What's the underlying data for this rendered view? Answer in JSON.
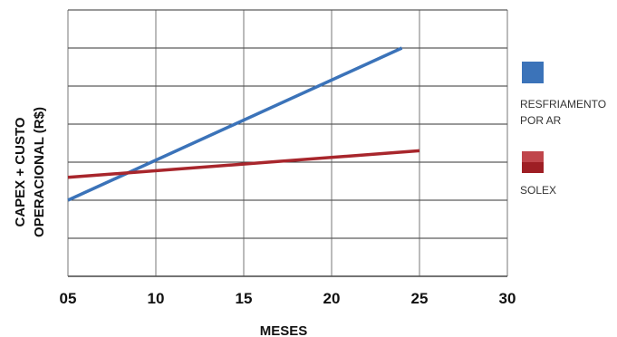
{
  "chart_data": {
    "type": "line",
    "title": "",
    "ylabel_line1": "CAPEX + CUSTO",
    "ylabel_line2": "OPERACIONAL (R$)",
    "xlabel": "MESES",
    "x_ticks": [
      "05",
      "10",
      "15",
      "20",
      "25",
      "30"
    ],
    "x_tick_values": [
      5,
      10,
      15,
      20,
      25,
      30
    ],
    "xlim": [
      5,
      30
    ],
    "ylim": [
      0,
      7
    ],
    "y_tick_labels": "none",
    "grid": true,
    "legend_position": "right",
    "series": [
      {
        "name": "RESFRIAMENTO POR AR",
        "color": "#3b73b9",
        "x": [
          5,
          24
        ],
        "y": [
          2.0,
          6.0
        ]
      },
      {
        "name": "SOLEX",
        "color": "#a8262c",
        "x": [
          5,
          25
        ],
        "y": [
          2.6,
          3.3
        ]
      }
    ]
  },
  "legend": {
    "item1_line1": "RESFRIAMENTO",
    "item1_line2": "POR AR",
    "item2": "SOLEX"
  }
}
